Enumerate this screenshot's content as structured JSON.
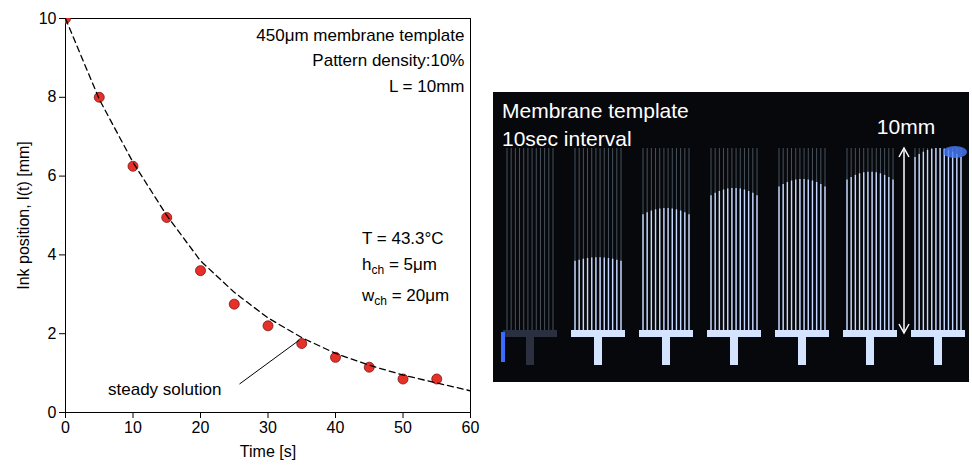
{
  "chart_data": {
    "type": "scatter",
    "x_label": "Time [s]",
    "y_label": "Ink position, l(t) [mm]",
    "xlim": [
      0,
      60
    ],
    "xticks": [
      0,
      10,
      20,
      30,
      40,
      50,
      60
    ],
    "ylim": [
      0,
      10
    ],
    "yticks": [
      0,
      2,
      4,
      6,
      8,
      10
    ],
    "grid": false,
    "annotations": [
      "450μm membrane template",
      "Pattern density:10%",
      "L = 10mm"
    ],
    "conditions": [
      {
        "base": "T = 43.3°C"
      },
      {
        "base": "h",
        "sub": "ch",
        "text": " = 5μm"
      },
      {
        "base": "w",
        "sub": "ch",
        "text": " = 20μm"
      }
    ],
    "series": [
      {
        "type": "scatter",
        "color": "#e8302a",
        "marker": "circle",
        "x": [
          0,
          5,
          10,
          15,
          20,
          25,
          30,
          35,
          40,
          45,
          50,
          55
        ],
        "values": [
          10,
          8.0,
          6.25,
          4.95,
          3.6,
          2.75,
          2.2,
          1.75,
          1.4,
          1.15,
          0.85,
          0.85
        ]
      },
      {
        "name": "steady solution",
        "type": "line",
        "color": "#000000",
        "line_style": "dashed",
        "x": [
          0,
          5,
          10,
          15,
          20,
          25,
          30,
          35,
          40,
          45,
          50,
          55,
          60
        ],
        "values": [
          10,
          7.95,
          6.35,
          5.0,
          3.85,
          3.05,
          2.4,
          1.9,
          1.5,
          1.2,
          0.95,
          0.75,
          0.55
        ]
      }
    ]
  },
  "photo": {
    "title": [
      "Membrane template",
      "10sec interval"
    ],
    "scale_label": "10mm"
  }
}
